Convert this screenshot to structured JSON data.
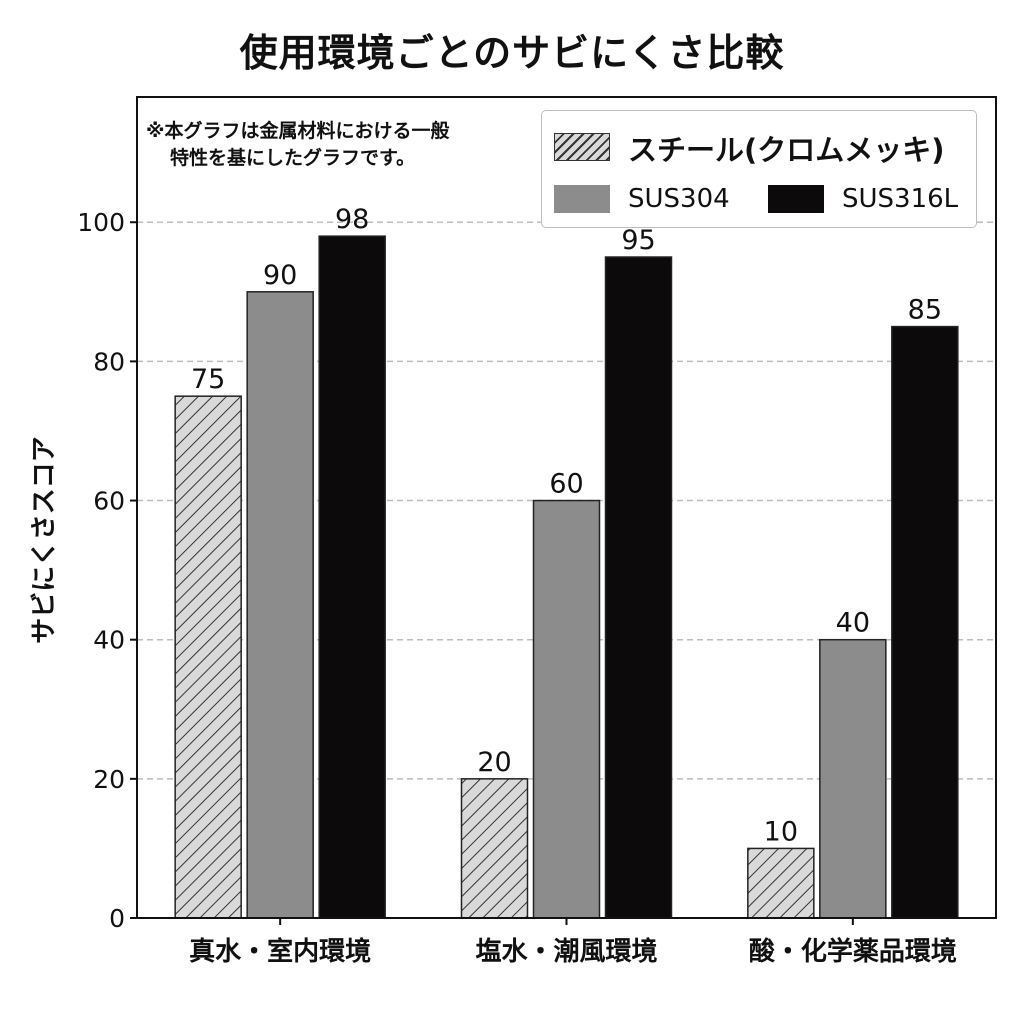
{
  "chart_data": {
    "type": "bar",
    "title": "使用環境ごとのサビにくさ比較",
    "ylabel": "サビにくさスコア",
    "xlabel": "",
    "ylim": [
      0,
      118
    ],
    "yticks": [
      0,
      20,
      40,
      60,
      80,
      100
    ],
    "grid": "horizontal dashed",
    "categories": [
      "真水・室内環境",
      "塩水・潮風環境",
      "酸・化学薬品環境"
    ],
    "series": [
      {
        "name": "スチール(クロムメッキ)",
        "values": [
          75,
          20,
          10
        ],
        "color": "#d9d9d9",
        "pattern": "hatched"
      },
      {
        "name": "SUS304",
        "values": [
          90,
          60,
          40
        ],
        "color": "#8c8c8c"
      },
      {
        "name": "SUS316L",
        "values": [
          98,
          95,
          85
        ],
        "color": "#0c0a0a"
      }
    ],
    "legend_position": "top-right",
    "annotation": {
      "line1": "※本グラフは金属材料における一般",
      "line2": "特性を基にしたグラフです。"
    }
  }
}
